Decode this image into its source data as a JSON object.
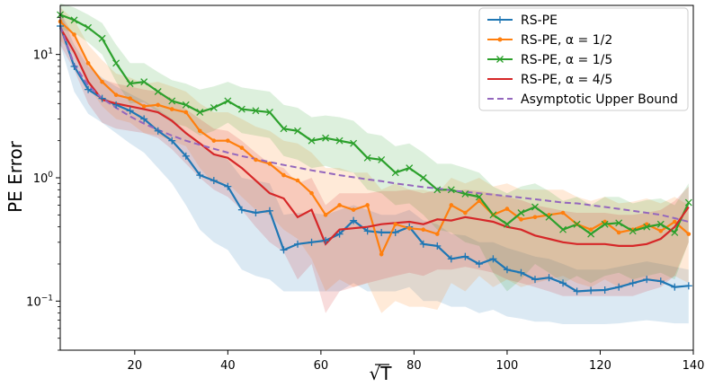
{
  "chart_data": {
    "type": "line",
    "title": "",
    "xlabel": "√T",
    "ylabel": "PE Error",
    "xlim": [
      4,
      140
    ],
    "ylim": [
      0.04,
      25
    ],
    "yscale": "log",
    "grid": false,
    "legend_position": "top-right",
    "xticks": [
      {
        "value": 20,
        "label": "20"
      },
      {
        "value": 40,
        "label": "40"
      },
      {
        "value": 60,
        "label": "60"
      },
      {
        "value": 80,
        "label": "80"
      },
      {
        "value": 100,
        "label": "100"
      },
      {
        "value": 120,
        "label": "120"
      },
      {
        "value": 140,
        "label": "140"
      }
    ],
    "yticks": [
      {
        "value": 0.1,
        "base": "10",
        "exp": "−1"
      },
      {
        "value": 1,
        "base": "10",
        "exp": "0"
      },
      {
        "value": 10,
        "base": "10",
        "exp": "1"
      }
    ],
    "x": [
      4,
      7,
      10,
      13,
      16,
      19,
      22,
      25,
      28,
      31,
      34,
      37,
      40,
      43,
      46,
      49,
      52,
      55,
      58,
      61,
      64,
      67,
      70,
      73,
      76,
      79,
      82,
      85,
      88,
      91,
      94,
      97,
      100,
      103,
      106,
      109,
      112,
      115,
      118,
      121,
      124,
      127,
      130,
      133,
      136,
      139
    ],
    "series": [
      {
        "name": "RS-PE",
        "color": "#1f77b4",
        "marker": "plus",
        "values": [
          17.0,
          8.0,
          5.2,
          4.4,
          3.9,
          3.5,
          3.0,
          2.4,
          2.0,
          1.5,
          1.05,
          0.95,
          0.85,
          0.55,
          0.52,
          0.54,
          0.26,
          0.29,
          0.3,
          0.31,
          0.35,
          0.45,
          0.37,
          0.36,
          0.36,
          0.4,
          0.29,
          0.28,
          0.22,
          0.23,
          0.2,
          0.22,
          0.18,
          0.17,
          0.15,
          0.155,
          0.14,
          0.12,
          0.122,
          0.123,
          0.13,
          0.14,
          0.15,
          0.145,
          0.13,
          0.133
        ],
        "upper": [
          22,
          12,
          8,
          6.5,
          5.5,
          4.8,
          4.2,
          3.6,
          3.0,
          2.4,
          1.8,
          1.6,
          1.4,
          1.0,
          0.95,
          0.9,
          0.5,
          0.52,
          0.52,
          0.5,
          0.55,
          0.6,
          0.55,
          0.5,
          0.5,
          0.55,
          0.45,
          0.42,
          0.35,
          0.34,
          0.3,
          0.3,
          0.27,
          0.25,
          0.23,
          0.22,
          0.2,
          0.18,
          0.18,
          0.18,
          0.19,
          0.2,
          0.21,
          0.2,
          0.19,
          0.18
        ],
        "lower": [
          12,
          5,
          3.3,
          2.8,
          2.3,
          1.9,
          1.6,
          1.2,
          0.9,
          0.6,
          0.38,
          0.3,
          0.26,
          0.18,
          0.16,
          0.15,
          0.12,
          0.12,
          0.12,
          0.12,
          0.12,
          0.14,
          0.12,
          0.12,
          0.12,
          0.13,
          0.1,
          0.1,
          0.09,
          0.09,
          0.08,
          0.085,
          0.075,
          0.072,
          0.068,
          0.068,
          0.065,
          0.065,
          0.065,
          0.065,
          0.066,
          0.068,
          0.07,
          0.068,
          0.066,
          0.066
        ]
      },
      {
        "name": "RS-PE, α = 1/2",
        "color": "#ff7f0e",
        "marker": "dot",
        "values": [
          18.5,
          14.5,
          8.5,
          6.0,
          4.7,
          4.4,
          3.8,
          3.9,
          3.6,
          3.4,
          2.4,
          2.0,
          2.0,
          1.75,
          1.4,
          1.3,
          1.05,
          0.95,
          0.75,
          0.5,
          0.6,
          0.55,
          0.6,
          0.24,
          0.42,
          0.39,
          0.38,
          0.35,
          0.6,
          0.52,
          0.65,
          0.5,
          0.56,
          0.46,
          0.48,
          0.5,
          0.52,
          0.42,
          0.38,
          0.44,
          0.36,
          0.38,
          0.42,
          0.37,
          0.44,
          0.35
        ],
        "upper": [
          24,
          19,
          12,
          9,
          7,
          6.5,
          5.8,
          6,
          5.5,
          5,
          4,
          3.4,
          3.4,
          3,
          2.6,
          2.4,
          2,
          1.9,
          1.6,
          1.2,
          1.2,
          1.1,
          1.1,
          0.8,
          0.9,
          0.8,
          0.8,
          0.75,
          1.0,
          0.9,
          1.0,
          0.85,
          0.9,
          0.8,
          0.8,
          0.8,
          0.8,
          0.7,
          0.65,
          0.7,
          0.62,
          0.64,
          0.68,
          0.62,
          0.7,
          0.6
        ],
        "lower": [
          13,
          10,
          5.5,
          3.8,
          3,
          2.8,
          2.3,
          2.2,
          2,
          1.8,
          1.2,
          0.9,
          0.9,
          0.7,
          0.55,
          0.5,
          0.38,
          0.32,
          0.22,
          0.12,
          0.15,
          0.13,
          0.14,
          0.08,
          0.1,
          0.09,
          0.09,
          0.085,
          0.14,
          0.12,
          0.16,
          0.13,
          0.15,
          0.13,
          0.14,
          0.15,
          0.16,
          0.14,
          0.13,
          0.15,
          0.13,
          0.14,
          0.15,
          0.14,
          0.16,
          0.14
        ]
      },
      {
        "name": "RS-PE, α = 1/5",
        "color": "#2ca02c",
        "marker": "x",
        "values": [
          21,
          19,
          16.5,
          13.5,
          8.5,
          5.8,
          6.0,
          5.0,
          4.2,
          3.9,
          3.4,
          3.7,
          4.2,
          3.6,
          3.5,
          3.4,
          2.5,
          2.4,
          2.0,
          2.1,
          2.0,
          1.9,
          1.45,
          1.4,
          1.1,
          1.2,
          1.0,
          0.8,
          0.8,
          0.74,
          0.7,
          0.5,
          0.42,
          0.52,
          0.58,
          0.48,
          0.38,
          0.42,
          0.35,
          0.42,
          0.43,
          0.37,
          0.4,
          0.42,
          0.36,
          0.63
        ],
        "upper": [
          26,
          24,
          21,
          18,
          12,
          8.5,
          8.5,
          7.2,
          6.2,
          5.8,
          5.2,
          5.5,
          6,
          5.4,
          5.2,
          5,
          3.9,
          3.7,
          3.1,
          3.2,
          3.1,
          2.9,
          2.3,
          2.2,
          1.8,
          1.9,
          1.6,
          1.3,
          1.3,
          1.2,
          1.1,
          0.85,
          0.75,
          0.85,
          0.9,
          0.78,
          0.65,
          0.7,
          0.6,
          0.7,
          0.7,
          0.62,
          0.66,
          0.68,
          0.6,
          0.9
        ],
        "lower": [
          16,
          15,
          12.5,
          10,
          6,
          4,
          4.1,
          3.4,
          2.8,
          2.6,
          2.2,
          2.4,
          2.8,
          2.3,
          2.2,
          2.1,
          1.5,
          1.4,
          1.2,
          1.25,
          1.15,
          1.1,
          0.8,
          0.75,
          0.6,
          0.62,
          0.5,
          0.38,
          0.36,
          0.3,
          0.28,
          0.17,
          0.12,
          0.15,
          0.2,
          0.17,
          0.14,
          0.16,
          0.14,
          0.16,
          0.17,
          0.15,
          0.16,
          0.17,
          0.15,
          0.3
        ]
      },
      {
        "name": "RS-PE, α = 4/5",
        "color": "#d62728",
        "marker": "none",
        "values": [
          16.5,
          10.5,
          6.0,
          4.3,
          4.0,
          3.8,
          3.6,
          3.4,
          2.9,
          2.3,
          1.9,
          1.55,
          1.45,
          1.2,
          0.95,
          0.75,
          0.68,
          0.48,
          0.55,
          0.29,
          0.38,
          0.39,
          0.4,
          0.42,
          0.43,
          0.44,
          0.42,
          0.46,
          0.45,
          0.48,
          0.46,
          0.44,
          0.4,
          0.38,
          0.34,
          0.32,
          0.3,
          0.29,
          0.29,
          0.29,
          0.28,
          0.28,
          0.29,
          0.32,
          0.4,
          0.58
        ],
        "upper": [
          22,
          14,
          8.5,
          6.3,
          5.8,
          5.5,
          5.2,
          5,
          4.4,
          3.6,
          3,
          2.5,
          2.4,
          2.0,
          1.6,
          1.3,
          1.2,
          0.9,
          1.0,
          0.6,
          0.75,
          0.75,
          0.75,
          0.78,
          0.78,
          0.8,
          0.75,
          0.8,
          0.78,
          0.8,
          0.78,
          0.75,
          0.7,
          0.66,
          0.6,
          0.57,
          0.54,
          0.52,
          0.52,
          0.52,
          0.5,
          0.5,
          0.52,
          0.55,
          0.65,
          0.85
        ],
        "lower": [
          12,
          7.5,
          4,
          2.8,
          2.5,
          2.4,
          2.3,
          2.1,
          1.7,
          1.3,
          1,
          0.8,
          0.7,
          0.55,
          0.4,
          0.3,
          0.25,
          0.15,
          0.2,
          0.08,
          0.12,
          0.13,
          0.14,
          0.15,
          0.16,
          0.17,
          0.16,
          0.18,
          0.18,
          0.19,
          0.18,
          0.17,
          0.15,
          0.14,
          0.13,
          0.12,
          0.11,
          0.11,
          0.11,
          0.11,
          0.11,
          0.11,
          0.12,
          0.13,
          0.16,
          0.3
        ]
      },
      {
        "name": "Asymptotic Upper Bound",
        "color": "#9467bd",
        "dashed": true,
        "marker": "none",
        "values": [
          17.0,
          8.3,
          5.6,
          4.4,
          3.7,
          3.15,
          2.75,
          2.45,
          2.2,
          2.0,
          1.85,
          1.72,
          1.6,
          1.5,
          1.42,
          1.34,
          1.27,
          1.21,
          1.15,
          1.1,
          1.05,
          1.01,
          0.97,
          0.94,
          0.9,
          0.87,
          0.84,
          0.82,
          0.79,
          0.77,
          0.75,
          0.73,
          0.71,
          0.69,
          0.67,
          0.65,
          0.63,
          0.62,
          0.6,
          0.58,
          0.56,
          0.54,
          0.52,
          0.5,
          0.47,
          0.44
        ]
      }
    ]
  }
}
